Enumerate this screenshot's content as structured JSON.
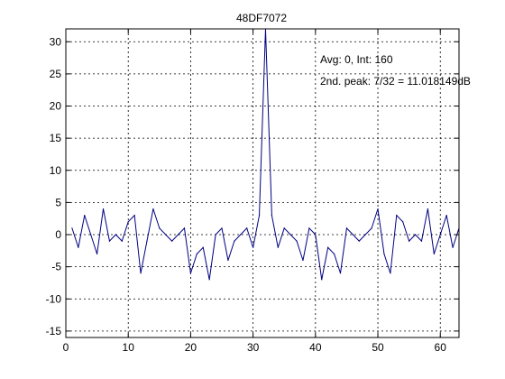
{
  "chart_data": {
    "type": "line",
    "title": "48DF7072",
    "xlabel": "",
    "ylabel": "",
    "xlim": [
      0,
      63
    ],
    "ylim": [
      -16,
      32
    ],
    "xticks": [
      0,
      10,
      20,
      30,
      40,
      50,
      60
    ],
    "yticks": [
      -15,
      -10,
      -5,
      0,
      5,
      10,
      15,
      20,
      25,
      30
    ],
    "grid": true,
    "annotations": [
      "Avg: 0, Int: 160",
      "2nd. peak: 7/32 = 11.018149dB"
    ],
    "series": [
      {
        "color": "#000080",
        "x": [
          1,
          2,
          3,
          4,
          5,
          6,
          7,
          8,
          9,
          10,
          11,
          12,
          13,
          14,
          15,
          16,
          17,
          18,
          19,
          20,
          21,
          22,
          23,
          24,
          25,
          26,
          27,
          28,
          29,
          30,
          31,
          32,
          33,
          34,
          35,
          36,
          37,
          38,
          39,
          40,
          41,
          42,
          43,
          44,
          45,
          46,
          47,
          48,
          49,
          50,
          51,
          52,
          53,
          54,
          55,
          56,
          57,
          58,
          59,
          60,
          61,
          62,
          63
        ],
        "values": [
          1,
          -2,
          3,
          0,
          -3,
          4,
          -1,
          0,
          -1,
          2,
          3,
          -6,
          -1,
          4,
          1,
          0,
          -1,
          0,
          1,
          -6,
          -3,
          -2,
          -7,
          0,
          1,
          -4,
          -1,
          0,
          1,
          -2,
          3,
          32,
          3,
          -2,
          1,
          0,
          -1,
          -4,
          1,
          0,
          -7,
          -2,
          -3,
          -6,
          1,
          0,
          -1,
          0,
          1,
          4,
          -3,
          -6,
          3,
          2,
          -1,
          0,
          -1,
          4,
          -3,
          0,
          3,
          -2,
          1
        ]
      }
    ]
  }
}
